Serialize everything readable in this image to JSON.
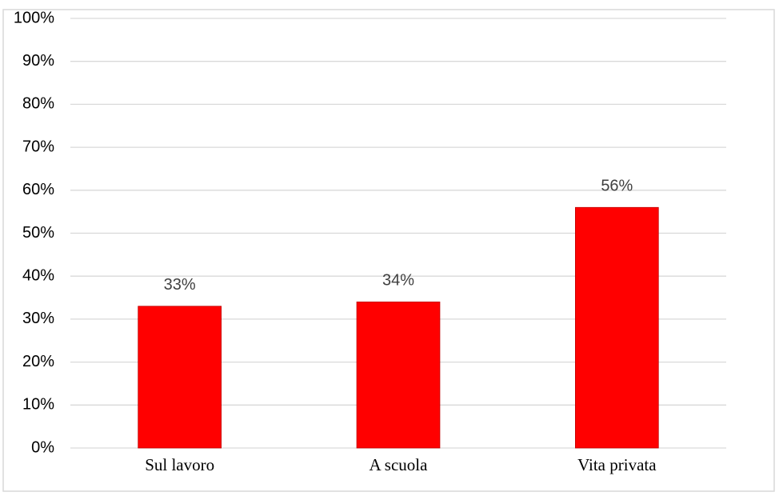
{
  "chart_data": {
    "type": "bar",
    "categories": [
      "Sul lavoro",
      "A scuola",
      "Vita privata"
    ],
    "values": [
      33,
      34,
      56
    ],
    "value_labels": [
      "33%",
      "34%",
      "56%"
    ],
    "color": "#ff0000",
    "ylim": [
      0,
      100
    ],
    "yticks": [
      {
        "value": 0,
        "label": "0%"
      },
      {
        "value": 10,
        "label": "10%"
      },
      {
        "value": 20,
        "label": "20%"
      },
      {
        "value": 30,
        "label": "30%"
      },
      {
        "value": 40,
        "label": "40%"
      },
      {
        "value": 50,
        "label": "50%"
      },
      {
        "value": 60,
        "label": "60%"
      },
      {
        "value": 70,
        "label": "70%"
      },
      {
        "value": 80,
        "label": "80%"
      },
      {
        "value": 90,
        "label": "90%"
      },
      {
        "value": 100,
        "label": "100%"
      }
    ],
    "grid": true
  }
}
